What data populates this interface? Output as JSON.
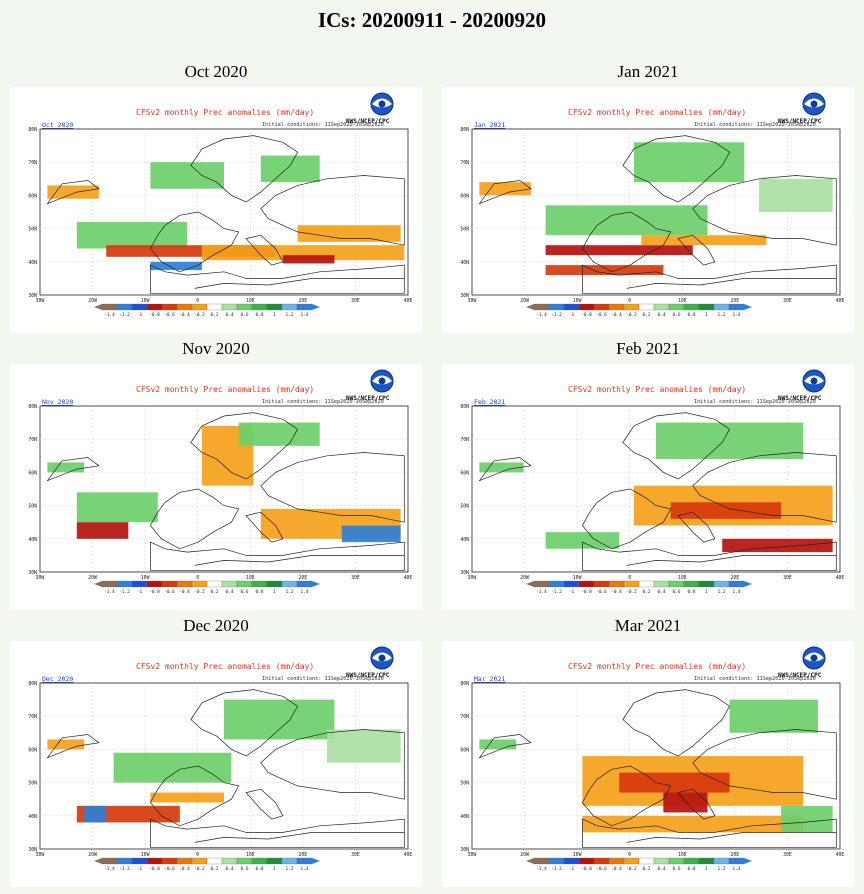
{
  "page": {
    "title": "ICs: 20200911 - 20200920"
  },
  "common": {
    "chart_title": "CFSv2 monthly Prec anomalies (mm/day)",
    "agency": "NWS/NCEP/CPC",
    "ic_note": "Initial conditions: 11Sep2020-20Sep2020",
    "lat_labels": [
      "80N",
      "70N",
      "60N",
      "50N",
      "40N",
      "30N"
    ],
    "lon_labels": [
      "30W",
      "20W",
      "10W",
      "0",
      "10E",
      "20E",
      "30E",
      "40E"
    ],
    "colorbar_ticks": [
      "-1.4",
      "-1.2",
      "-1",
      "-0.8",
      "-0.6",
      "-0.4",
      "-0.2",
      "0.2",
      "0.4",
      "0.6",
      "0.8",
      "1",
      "1.2",
      "1.4"
    ],
    "colors": {
      "very_dry": "#8b6d5c",
      "dry_blue": "#1f4fd6",
      "dark_red": "#b5120e",
      "red": "#d63a0c",
      "orange_dark": "#e87a0c",
      "orange": "#f5a11a",
      "pale_green": "#a9e0a3",
      "green": "#6dcf6a",
      "mid_green": "#3cb34a",
      "dark_green": "#1e8c3a",
      "light_blue": "#6fb4e8",
      "blue": "#2f7fd6"
    }
  },
  "panels": [
    {
      "month": "Oct 2020",
      "corner": "Oct 2020"
    },
    {
      "month": "Jan 2021",
      "corner": "Jan 2021"
    },
    {
      "month": "Nov 2020",
      "corner": "Nov 2020"
    },
    {
      "month": "Feb 2021",
      "corner": "Feb 2021"
    },
    {
      "month": "Dec 2020",
      "corner": "Dec 2020"
    },
    {
      "month": "Mar 2021",
      "corner": "Mar 2021"
    }
  ]
}
